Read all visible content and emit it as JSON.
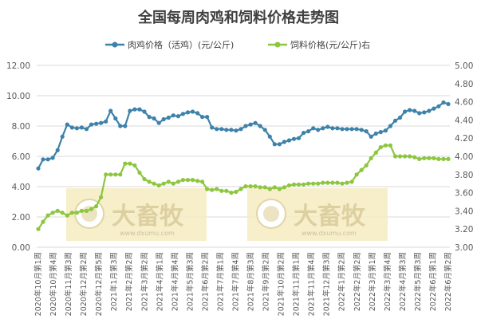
{
  "chart_data": {
    "type": "line",
    "title": "全国每周肉鸡和饲料价格走势图",
    "y_left": {
      "ylim": [
        0,
        12
      ],
      "ticks": [
        "0.00",
        "2.00",
        "4.00",
        "6.00",
        "8.00",
        "10.00",
        "12.00"
      ]
    },
    "y_right": {
      "ylim": [
        3.0,
        5.0
      ],
      "ticks": [
        "3.00",
        "3.20",
        "3.40",
        "3.60",
        "3.80",
        "4.00",
        "4.20",
        "4.40",
        "4.60",
        "4.80",
        "5.00"
      ]
    },
    "grid": true,
    "legend_position": "top",
    "x_labels": [
      "2020年10月第1周",
      "2020年10月第4周",
      "2020年11月第3周",
      "2020年12月第2周",
      "2020年12月第5周",
      "2021年1月第3周",
      "2021年2月第2周",
      "2021年3月第2周",
      "2021年4月第1周",
      "2021年4月第4周",
      "2021年5月第3周",
      "2021年6月第2周",
      "2021年7月第1周",
      "2021年7月第4周",
      "2021年8月第3周",
      "2021年9月第2周",
      "2021年10月第2周",
      "2021年11月第1周",
      "2021年11月第4周",
      "2021年12月第3周",
      "2022年1月第2周",
      "2022年2月第2周",
      "2022年3月第1周",
      "2022年3月第4周",
      "2022年4月第3周",
      "2022年5月第3周",
      "2022年6月第1周",
      "2022年6月第2周"
    ],
    "series": [
      {
        "name": "肉鸡价格（活鸡）(元/公斤)",
        "axis": "left",
        "color": "#3d82aa",
        "values": [
          5.2,
          5.8,
          5.8,
          5.9,
          6.4,
          7.3,
          8.1,
          7.9,
          7.85,
          7.9,
          7.8,
          8.1,
          8.15,
          8.2,
          8.3,
          9.0,
          8.5,
          8.0,
          8.0,
          9.0,
          9.1,
          9.1,
          8.95,
          8.6,
          8.5,
          8.2,
          8.45,
          8.55,
          8.7,
          8.65,
          8.8,
          8.9,
          8.95,
          8.85,
          8.6,
          8.6,
          7.9,
          7.8,
          7.8,
          7.75,
          7.75,
          7.7,
          7.8,
          8.0,
          8.1,
          8.2,
          8.0,
          7.75,
          7.3,
          6.8,
          6.8,
          6.95,
          7.05,
          7.15,
          7.2,
          7.55,
          7.65,
          7.85,
          7.75,
          7.85,
          7.95,
          7.85,
          7.85,
          7.8,
          7.8,
          7.8,
          7.8,
          7.75,
          7.65,
          7.3,
          7.5,
          7.6,
          7.7,
          8.0,
          8.35,
          8.55,
          8.95,
          9.05,
          9.0,
          8.85,
          8.9,
          9.0,
          9.15,
          9.3,
          9.55,
          9.45
        ]
      },
      {
        "name": "饲料价格(元/公斤)右",
        "axis": "right",
        "color": "#8dc63f",
        "values": [
          3.2,
          3.28,
          3.35,
          3.38,
          3.4,
          3.38,
          3.35,
          3.38,
          3.38,
          3.4,
          3.4,
          3.42,
          3.45,
          3.55,
          3.8,
          3.8,
          3.8,
          3.8,
          3.92,
          3.92,
          3.9,
          3.82,
          3.75,
          3.72,
          3.7,
          3.68,
          3.7,
          3.72,
          3.7,
          3.72,
          3.74,
          3.74,
          3.74,
          3.73,
          3.72,
          3.64,
          3.63,
          3.64,
          3.62,
          3.62,
          3.6,
          3.61,
          3.64,
          3.67,
          3.67,
          3.67,
          3.66,
          3.66,
          3.64,
          3.66,
          3.64,
          3.66,
          3.68,
          3.69,
          3.69,
          3.69,
          3.7,
          3.7,
          3.7,
          3.71,
          3.71,
          3.71,
          3.71,
          3.7,
          3.71,
          3.72,
          3.8,
          3.85,
          3.9,
          3.98,
          4.04,
          4.1,
          4.12,
          4.12,
          4.0,
          4.0,
          4.0,
          4.0,
          3.99,
          3.97,
          3.98,
          3.98,
          3.98,
          3.97,
          3.97,
          3.97
        ]
      }
    ]
  },
  "watermark": {
    "brand": "大畜牧",
    "url": "www.dxumu.com"
  }
}
